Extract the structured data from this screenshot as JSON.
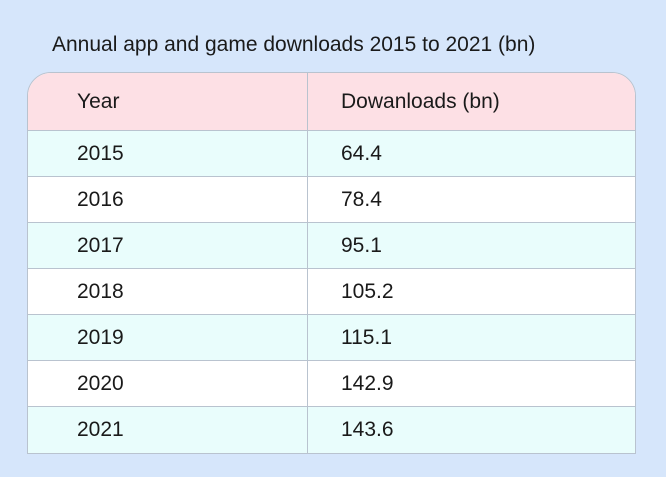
{
  "chart_data": {
    "type": "table",
    "title": "Annual app and game downloads 2015 to 2021 (bn)",
    "columns": [
      "Year",
      "Dowanloads (bn)"
    ],
    "rows": [
      [
        "2015",
        "64.4"
      ],
      [
        "2016",
        "78.4"
      ],
      [
        "2017",
        "95.1"
      ],
      [
        "2018",
        "105.2"
      ],
      [
        "2019",
        "115.1"
      ],
      [
        "2020",
        "142.9"
      ],
      [
        "2021",
        "143.6"
      ]
    ]
  },
  "colors": {
    "background": "#d6e6fb",
    "header_row": "#fde0e5",
    "alt_row": "#e9fdfc",
    "row": "#ffffff",
    "grid": "#b9c3cf"
  }
}
